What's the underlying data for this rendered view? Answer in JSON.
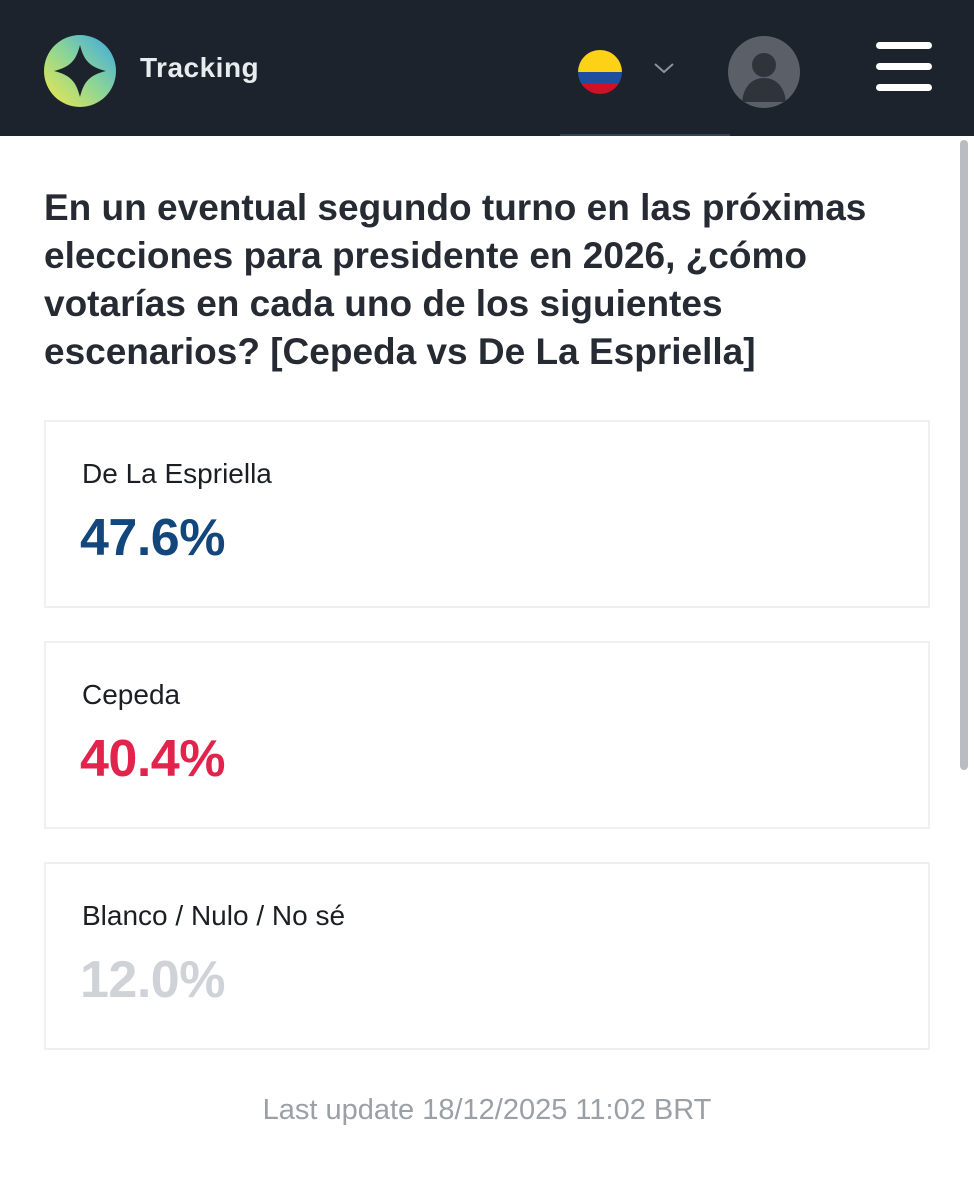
{
  "header": {
    "app_name": "Tracking",
    "flag_icon": "colombia-flag-icon",
    "dropdown_icon": "chevron-down-icon",
    "avatar_icon": "user-avatar-icon",
    "menu_icon": "hamburger-menu-icon",
    "colors": {
      "background": "#1d232c"
    }
  },
  "question": {
    "text": "En un eventual segundo turno en las próximas elecciones para presidente en 2026, ¿cómo votarías en cada uno de los siguientes escenarios? [Cepeda vs De La Espriella]"
  },
  "results": [
    {
      "label": "De La Espriella",
      "value": "47.6%",
      "color": "#12467d"
    },
    {
      "label": "Cepeda",
      "value": "40.4%",
      "color": "#e1244c"
    },
    {
      "label": "Blanco / Nulo / No sé",
      "value": "12.0%",
      "color": "#cfd2d6"
    }
  ],
  "footer": {
    "last_update": "Last update 18/12/2025 11:02 BRT"
  }
}
